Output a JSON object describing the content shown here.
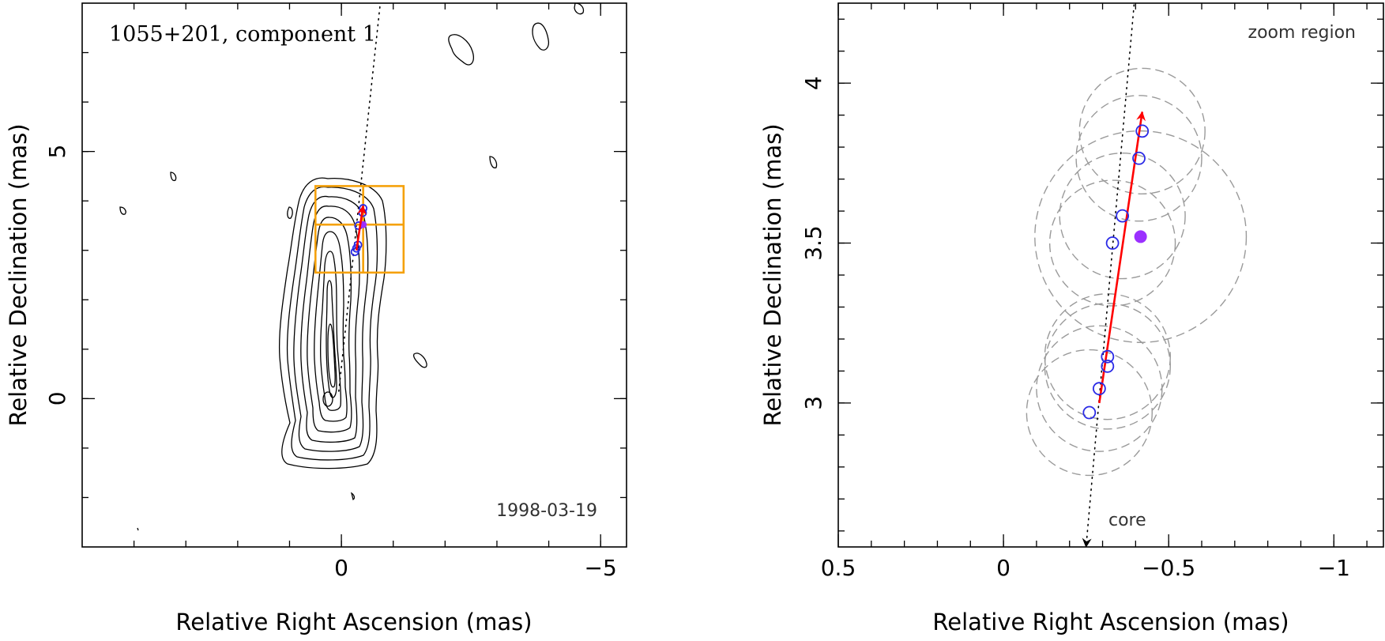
{
  "chart_data": [
    {
      "type": "scatter",
      "subtype": "contour-map",
      "title": "1055+201, component 1",
      "date": "1998-03-19",
      "xlabel": "Relative Right Ascension (mas)",
      "ylabel": "Relative Declination (mas)",
      "xlim": [
        5,
        -5.5
      ],
      "ylim": [
        -3,
        8
      ],
      "xticks": [
        0,
        -5
      ],
      "xtick_labels": [
        "0",
        "−5"
      ],
      "yticks": [
        0,
        5
      ],
      "ytick_labels": [
        "0",
        "5"
      ],
      "component_positions": [
        {
          "x": -0.26,
          "y": 2.97
        },
        {
          "x": -0.29,
          "y": 3.04
        },
        {
          "x": -0.32,
          "y": 3.11
        },
        {
          "x": -0.33,
          "y": 3.5
        },
        {
          "x": -0.41,
          "y": 3.76
        },
        {
          "x": -0.42,
          "y": 3.85
        }
      ],
      "highlighted_position": {
        "x": -0.42,
        "y": 3.52
      },
      "motion_vector": {
        "from": {
          "x": -0.29,
          "y": 3.0
        },
        "to": {
          "x": -0.42,
          "y": 3.9
        }
      },
      "zoom_box": {
        "x": [
          0.5,
          -1.2
        ],
        "y": [
          2.55,
          4.3
        ]
      },
      "colors": {
        "components": "#2a2ae6",
        "highlight": "#9b30ff",
        "vector": "#ff0000",
        "zoom_box": "#f5a10a"
      }
    },
    {
      "type": "scatter",
      "subtype": "zoom-region",
      "annotation": "zoom region",
      "core_label": "core",
      "xlabel": "Relative Right Ascension (mas)",
      "ylabel": "Relative Declination (mas)",
      "xlim": [
        0.5,
        -1.15
      ],
      "ylim": [
        2.55,
        4.25
      ],
      "xticks": [
        0.5,
        0,
        -0.5,
        -1
      ],
      "xtick_labels": [
        "0.5",
        "0",
        "−0.5",
        "−1"
      ],
      "yticks": [
        3,
        3.5,
        4
      ],
      "ytick_labels": [
        "3",
        "3.5",
        "4"
      ],
      "component_positions": [
        {
          "x": -0.26,
          "y": 2.97
        },
        {
          "x": -0.29,
          "y": 3.045
        },
        {
          "x": -0.315,
          "y": 3.115
        },
        {
          "x": -0.315,
          "y": 3.145
        },
        {
          "x": -0.33,
          "y": 3.5
        },
        {
          "x": -0.36,
          "y": 3.585
        },
        {
          "x": -0.41,
          "y": 3.765
        },
        {
          "x": -0.42,
          "y": 3.85
        }
      ],
      "highlighted_position": {
        "x": -0.415,
        "y": 3.52
      },
      "uncertainty_circles": [
        {
          "x": -0.26,
          "y": 2.97,
          "r": 0.19
        },
        {
          "x": -0.29,
          "y": 3.045,
          "r": 0.19
        },
        {
          "x": -0.315,
          "y": 3.115,
          "r": 0.19
        },
        {
          "x": -0.315,
          "y": 3.145,
          "r": 0.19
        },
        {
          "x": -0.33,
          "y": 3.5,
          "r": 0.19
        },
        {
          "x": -0.36,
          "y": 3.585,
          "r": 0.19
        },
        {
          "x": -0.41,
          "y": 3.765,
          "r": 0.19
        },
        {
          "x": -0.42,
          "y": 3.85,
          "r": 0.19
        },
        {
          "x": -0.415,
          "y": 3.52,
          "r": 0.32
        }
      ],
      "motion_vector": {
        "from": {
          "x": -0.29,
          "y": 3.0
        },
        "to": {
          "x": -0.42,
          "y": 3.91
        }
      },
      "ridge_line": {
        "from": {
          "x": -0.4,
          "y": 4.3
        },
        "to": {
          "x": -0.25,
          "y": 2.55
        }
      },
      "colors": {
        "components": "#2a2ae6",
        "highlight": "#9b30ff",
        "vector": "#ff0000",
        "uncertainty": "#9a9a9a"
      }
    }
  ]
}
